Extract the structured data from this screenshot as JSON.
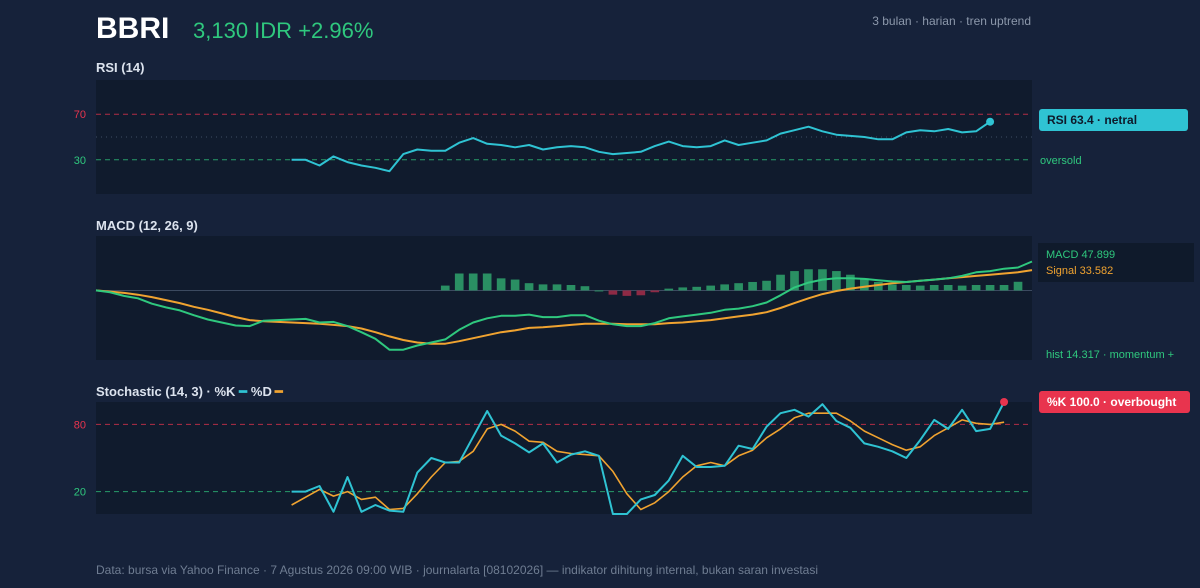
{
  "header": {
    "ticker": "BBRI",
    "price_line": "3,130 IDR +2.96%",
    "meta": "3 bulan · harian · tren uptrend"
  },
  "footer": "Data: bursa via Yahoo Finance · 7 Agustus 2026 09:00 WIB · journalarta [08102026] — indikator dihitung internal, bukan saran investasi",
  "colors": {
    "background": "#16223a",
    "panel": "#101b2d",
    "rsi": "#2fc3d3",
    "macd": "#2fc87e",
    "signal": "#f0a330",
    "hist_pos": "#2a8f63",
    "hist_neg": "#8e2a45",
    "overbought": "#e8344e",
    "oversold": "#2fc87e",
    "stoch_k": "#2fc3d3",
    "stoch_d": "#f0a330"
  },
  "chart_data": [
    {
      "type": "line",
      "title": "RSI (14)",
      "ylim": [
        0,
        100
      ],
      "ref_lines": [
        {
          "value": 70,
          "label": "70"
        },
        {
          "value": 30,
          "label": "30"
        },
        {
          "value": 50,
          "label": ""
        }
      ],
      "oversold_label": "oversold",
      "callout": "RSI 63.4 · netral",
      "series": [
        {
          "values": [
            null,
            null,
            null,
            null,
            null,
            null,
            null,
            null,
            null,
            null,
            null,
            null,
            null,
            null,
            30,
            30,
            25,
            33,
            28,
            25,
            23,
            20,
            35,
            39,
            38,
            38,
            45,
            49,
            44,
            43,
            41,
            43,
            39,
            41,
            42,
            41,
            37,
            35,
            36,
            37,
            42,
            46,
            42,
            41,
            42,
            47,
            43,
            45,
            47,
            53,
            56,
            59,
            55,
            52,
            51,
            50,
            48,
            48,
            54,
            56,
            55,
            57,
            54,
            55,
            63.4
          ]
        }
      ]
    },
    {
      "type": "line",
      "title": "MACD (12, 26, 9)",
      "ylim": [
        -115,
        90
      ],
      "legend": [
        "MACD 47.899",
        "Signal 33.582"
      ],
      "hist_label": "hist 14.317 · momentum +",
      "series": [
        {
          "values": [
            0,
            -3,
            -9,
            -13,
            -22,
            -28,
            -33,
            -41,
            -48,
            -53,
            -58,
            -59,
            -50,
            -49,
            -48,
            -47,
            -53,
            -52,
            -59,
            -69,
            -80,
            -98,
            -98,
            -91,
            -86,
            -81,
            -65,
            -53,
            -46,
            -42,
            -42,
            -40,
            -44,
            -44,
            -41,
            -41,
            -50,
            -56,
            -59,
            -59,
            -54,
            -46,
            -43,
            -40,
            -37,
            -32,
            -30,
            -26,
            -20,
            -8,
            5,
            13,
            18,
            20,
            20,
            19,
            17,
            15,
            14,
            16,
            18,
            20,
            24,
            30,
            32,
            36,
            38,
            47.899
          ]
        },
        {
          "values": [
            0,
            -2,
            -4,
            -7,
            -11,
            -16,
            -21,
            -27,
            -32,
            -38,
            -44,
            -49,
            -51,
            -52,
            -53,
            -54,
            -55,
            -57,
            -59,
            -63,
            -69,
            -76,
            -82,
            -86,
            -88,
            -88,
            -84,
            -79,
            -74,
            -69,
            -66,
            -62,
            -61,
            -59,
            -57,
            -55,
            -55,
            -55,
            -56,
            -56,
            -56,
            -54,
            -53,
            -51,
            -49,
            -46,
            -43,
            -40,
            -36,
            -29,
            -21,
            -13,
            -6,
            -1,
            3,
            6,
            9,
            12,
            14,
            16,
            18,
            20,
            22,
            24,
            26,
            28,
            30,
            33.582
          ]
        },
        {
          "values": [
            null,
            null,
            null,
            null,
            null,
            null,
            null,
            null,
            null,
            null,
            null,
            null,
            null,
            null,
            null,
            null,
            null,
            null,
            null,
            null,
            null,
            null,
            null,
            null,
            null,
            8,
            28,
            28,
            28,
            20,
            18,
            12,
            10,
            10,
            9,
            7,
            0,
            -7,
            -9,
            -8,
            -3,
            3,
            5,
            6,
            8,
            10,
            12,
            14,
            16,
            26,
            32,
            35,
            35,
            32,
            26,
            20,
            14,
            10,
            9,
            8,
            9,
            9,
            8,
            9,
            9,
            9,
            14.317
          ]
        }
      ]
    },
    {
      "type": "line",
      "title": "Stochastic (14, 3) · %K",
      "series_labels": [
        "%K",
        "%D"
      ],
      "ylim": [
        0,
        100
      ],
      "ref_lines": [
        {
          "value": 80,
          "label": "80"
        },
        {
          "value": 20,
          "label": "20"
        }
      ],
      "callout": "%K 100.0 · overbought",
      "series": [
        {
          "values": [
            null,
            null,
            null,
            null,
            null,
            null,
            null,
            null,
            null,
            null,
            null,
            null,
            null,
            null,
            20,
            20,
            25,
            2,
            33,
            2,
            8,
            3,
            2,
            37,
            50,
            46,
            46,
            69,
            92,
            70,
            63,
            55,
            63,
            46,
            53,
            56,
            52,
            0,
            0,
            13,
            17,
            30,
            52,
            42,
            42,
            43,
            61,
            58,
            78,
            90,
            93,
            87,
            98,
            83,
            77,
            63,
            60,
            56,
            50,
            66,
            84,
            76,
            93,
            74,
            76,
            100
          ]
        },
        {
          "values": [
            null,
            null,
            null,
            null,
            null,
            null,
            null,
            null,
            null,
            null,
            null,
            null,
            null,
            null,
            8,
            15,
            22,
            16,
            20,
            13,
            15,
            4,
            5,
            18,
            33,
            46,
            47,
            56,
            76,
            80,
            74,
            65,
            64,
            56,
            54,
            53,
            52,
            38,
            18,
            4,
            10,
            20,
            33,
            43,
            46,
            43,
            52,
            57,
            68,
            76,
            86,
            90,
            90,
            90,
            83,
            74,
            68,
            62,
            57,
            60,
            70,
            77,
            84,
            81,
            80,
            82
          ]
        }
      ]
    }
  ]
}
